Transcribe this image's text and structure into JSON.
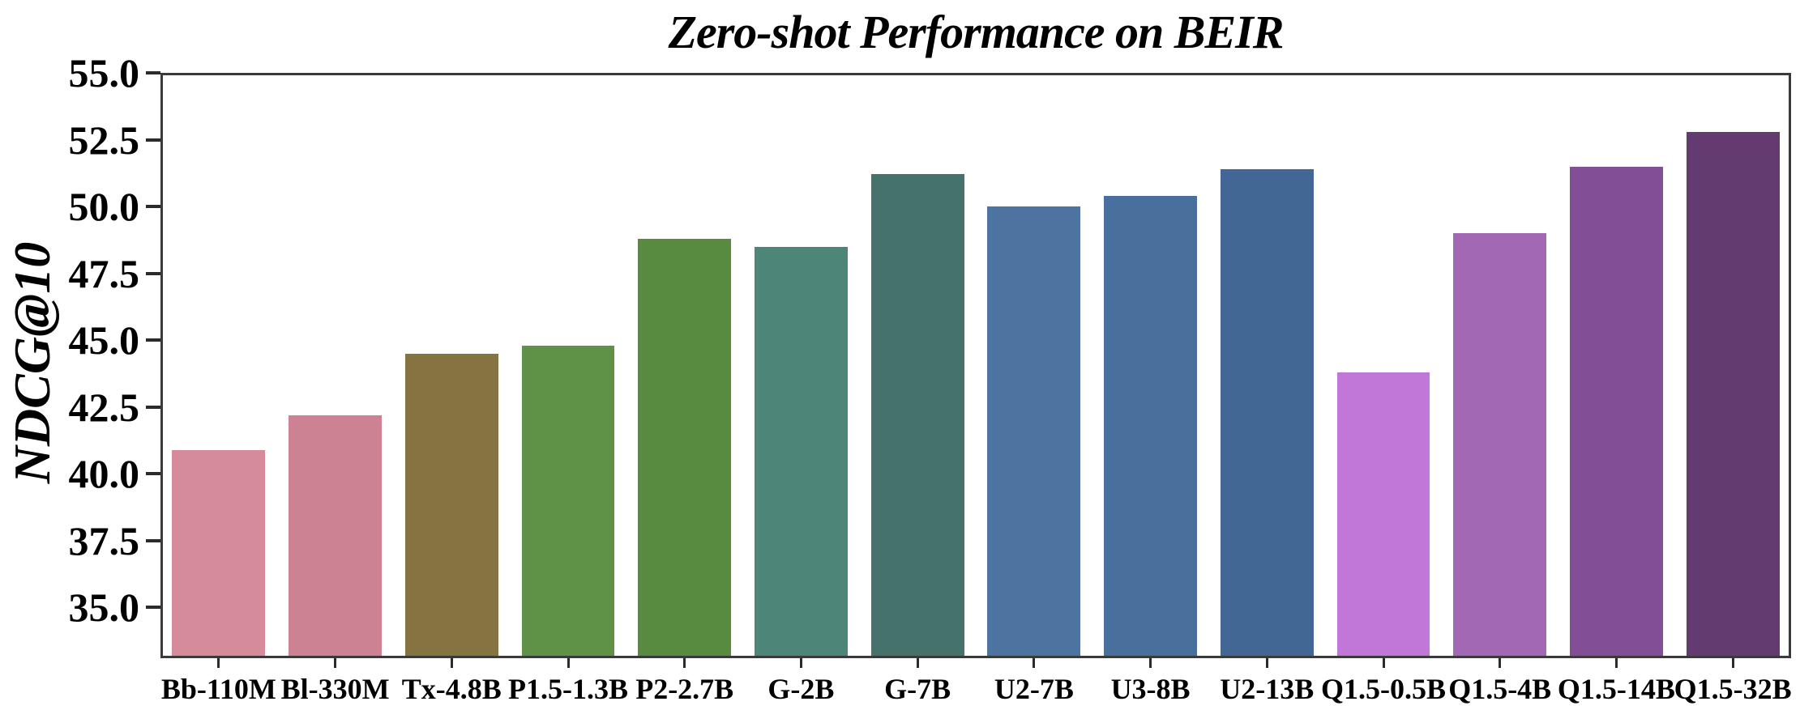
{
  "chart_data": {
    "type": "bar",
    "title": "Zero-shot Performance on BEIR",
    "xlabel": "",
    "ylabel": "NDCG@10",
    "categories": [
      "Bb-110M",
      "Bl-330M",
      "Tx-4.8B",
      "P1.5-1.3B",
      "P2-2.7B",
      "G-2B",
      "G-7B",
      "U2-7B",
      "U3-8B",
      "U2-13B",
      "Q1.5-0.5B",
      "Q1.5-4B",
      "Q1.5-14B",
      "Q1.5-32B"
    ],
    "values": [
      40.9,
      42.2,
      44.5,
      44.8,
      48.8,
      48.5,
      51.2,
      50.0,
      50.4,
      51.4,
      43.8,
      49.0,
      51.5,
      52.8
    ],
    "bar_colors": [
      "#d68b9a",
      "#cc8292",
      "#857341",
      "#5f9147",
      "#588a3f",
      "#4d8679",
      "#45736b",
      "#4d73a1",
      "#49709c",
      "#436795",
      "#c077d8",
      "#a268b4",
      "#824f96",
      "#633b71"
    ],
    "ylim": [
      33.1,
      55.0
    ],
    "yticks": [
      35.0,
      37.5,
      40.0,
      42.5,
      45.0,
      47.5,
      50.0,
      52.5,
      55.0
    ],
    "ytick_format_decimals": 1,
    "grid": false,
    "legend": null,
    "layout_hints": {
      "bar_width_fraction": 0.8,
      "frame": "full-box",
      "tick_direction": "out"
    }
  },
  "style": {
    "background": "#ffffff",
    "spine_color": "#3a3a3a",
    "tick_color": "#2b2b2b",
    "text_color": "#000000"
  }
}
